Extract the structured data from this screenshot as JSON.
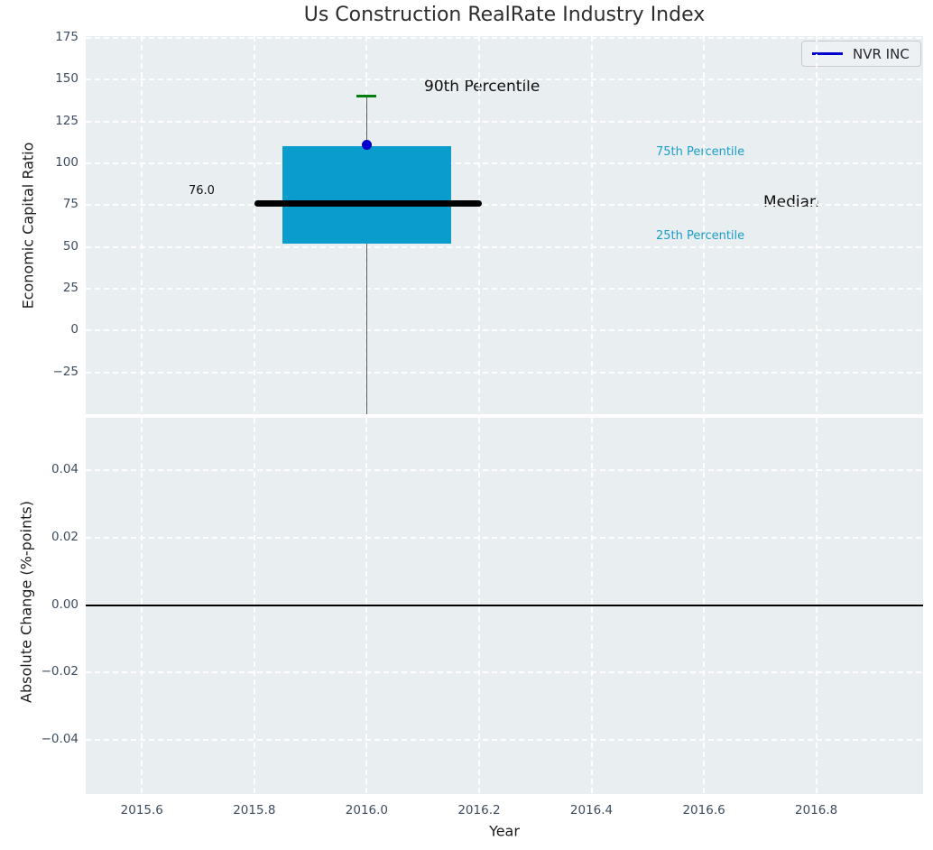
{
  "colors": {
    "plot_background": "#e9eef0",
    "grid": "#ffffff",
    "box_fill": "#0a9ccd",
    "median_line": "#000000",
    "p90_cap": "#007f0e",
    "whisker": "#5a5a5a",
    "company_marker": "#0000cc",
    "cyan_text": "#1a9fca",
    "tick_text": "#3d4c5e",
    "zero_line": "#000000"
  },
  "chart_data": [
    {
      "type": "box",
      "title": "Us Construction RealRate Industry Index",
      "ylabel": "Economic Capital Ratio",
      "ylim": [
        -50,
        176
      ],
      "xlim": [
        2015.5,
        2016.99
      ],
      "grid": true,
      "yticks": {
        "values": [
          175,
          150,
          125,
          100,
          75,
          50,
          25,
          0,
          -25
        ],
        "labels": [
          "175",
          "150",
          "125",
          "100",
          "75",
          "50",
          "25",
          "0",
          "−25"
        ]
      },
      "xticks": {
        "values": [
          2015.6,
          2015.8,
          2016.0,
          2016.2,
          2016.4,
          2016.6,
          2016.8
        ],
        "labels": [
          null,
          null,
          null,
          null,
          null,
          null,
          null
        ]
      },
      "legend": {
        "label": "NVR INC",
        "color": "#0000cc",
        "position": "upper right"
      },
      "boxplot": {
        "x_center": 2016.0,
        "box_x_left": 2015.85,
        "box_x_right": 2016.15,
        "p25": 52,
        "p75": 110,
        "median": 76.0,
        "median_label": "76.0",
        "median_x_left": 2015.8,
        "median_x_right": 2016.205,
        "p90": 140,
        "whisker_low": -50,
        "whisker_clipped_at_axis_bottom": true
      },
      "series": [
        {
          "name": "NVR INC",
          "x": [
            2016.0
          ],
          "y": [
            111
          ],
          "marker": "circle",
          "color": "#0000cc"
        }
      ],
      "annotations": [
        {
          "text": "90th Percentile",
          "role": "p90-label",
          "color": "#101010"
        },
        {
          "text": "75th Percentile",
          "role": "p75-label",
          "color": "#1a9fca"
        },
        {
          "text": "Median",
          "role": "median-label",
          "color": "#101010"
        },
        {
          "text": "25th Percentile",
          "role": "p25-label",
          "color": "#1a9fca"
        },
        {
          "text": "76.0",
          "role": "median-value",
          "color": "#101010"
        }
      ]
    },
    {
      "type": "line",
      "ylabel": "Absolute Change (%-points)",
      "xlabel": "Year",
      "ylim": [
        -0.056,
        0.0556
      ],
      "xlim": [
        2015.5,
        2016.99
      ],
      "grid": true,
      "yticks": {
        "values": [
          0.04,
          0.02,
          0.0,
          -0.02,
          -0.04
        ],
        "labels": [
          "0.04",
          "0.02",
          "0.00",
          "−0.02",
          "−0.04"
        ]
      },
      "xticks": {
        "values": [
          2015.6,
          2015.8,
          2016.0,
          2016.2,
          2016.4,
          2016.6,
          2016.8
        ],
        "labels": [
          "2015.6",
          "2015.8",
          "2016.0",
          "2016.2",
          "2016.4",
          "2016.6",
          "2016.8"
        ]
      },
      "zero_line": 0.0
    }
  ]
}
